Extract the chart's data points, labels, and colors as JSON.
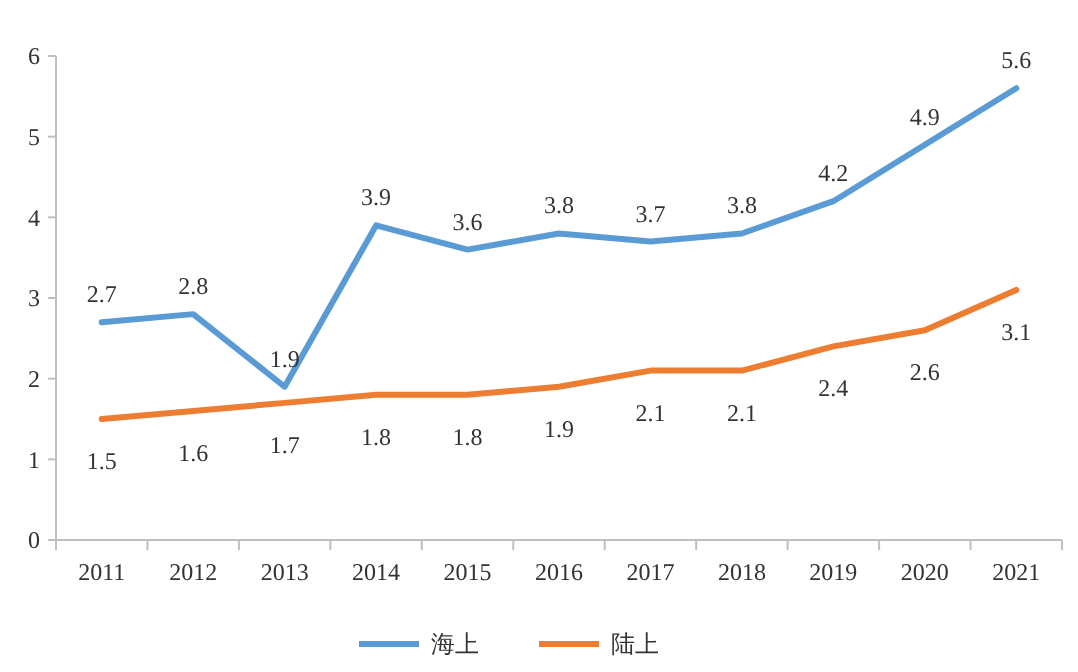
{
  "chart_data": {
    "type": "line",
    "categories": [
      "2011",
      "2012",
      "2013",
      "2014",
      "2015",
      "2016",
      "2017",
      "2018",
      "2019",
      "2020",
      "2021"
    ],
    "series": [
      {
        "name": "海上",
        "color": "#5b9bd5",
        "values": [
          2.7,
          2.8,
          1.9,
          3.9,
          3.6,
          3.8,
          3.7,
          3.8,
          4.2,
          4.9,
          5.6
        ]
      },
      {
        "name": "陆上",
        "color": "#ed7d31",
        "values": [
          1.5,
          1.6,
          1.7,
          1.8,
          1.8,
          1.9,
          2.1,
          2.1,
          2.4,
          2.6,
          3.1
        ]
      }
    ],
    "ylim": [
      0,
      6
    ],
    "yticks": [
      0,
      1,
      2,
      3,
      4,
      5,
      6
    ],
    "grid": false,
    "legend": "bottom",
    "data_labels": true,
    "marker": "none",
    "line_style": "solid"
  }
}
